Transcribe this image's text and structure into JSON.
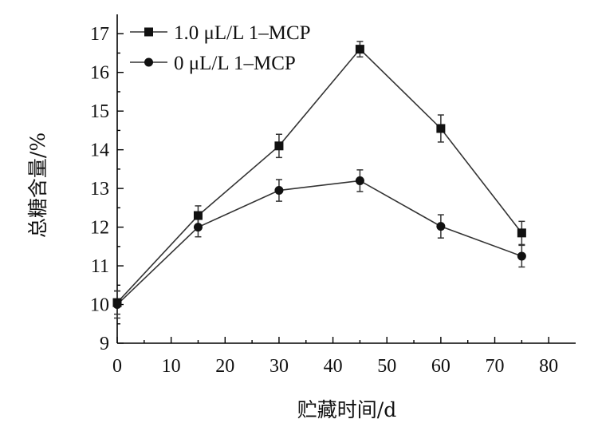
{
  "chart_data": {
    "type": "line",
    "xlabel": "贮藏时间/d",
    "ylabel": "总糖含量/%",
    "xlim": [
      0,
      85
    ],
    "ylim": [
      9,
      17.5
    ],
    "xticks": [
      0,
      10,
      20,
      30,
      40,
      50,
      60,
      70,
      80
    ],
    "yticks": [
      9,
      10,
      11,
      12,
      13,
      14,
      15,
      16,
      17
    ],
    "grid": false,
    "legend_position": "top-left",
    "x": [
      0,
      15,
      30,
      45,
      60,
      75
    ],
    "series": [
      {
        "name": "1.0 μL/L 1–MCP",
        "marker": "square",
        "values": [
          10.05,
          12.3,
          14.1,
          16.6,
          14.55,
          11.85
        ],
        "errors": [
          0.3,
          0.25,
          0.3,
          0.2,
          0.35,
          0.3
        ]
      },
      {
        "name": "0 μL/L 1–MCP",
        "marker": "circle",
        "values": [
          10.0,
          12.0,
          12.95,
          13.2,
          12.02,
          11.25
        ],
        "errors": [
          0.35,
          0.25,
          0.28,
          0.28,
          0.3,
          0.28
        ]
      }
    ]
  }
}
